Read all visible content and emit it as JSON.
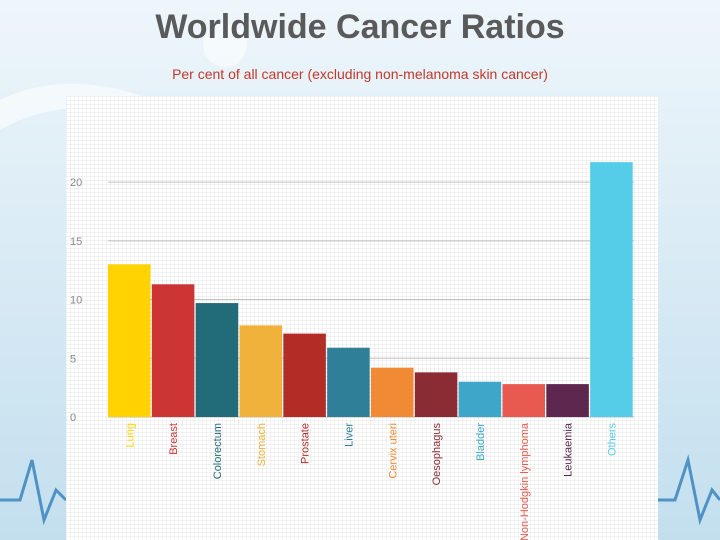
{
  "slide": {
    "title": "Worldwide Cancer Ratios",
    "subtitle": "Per cent of all cancer (excluding non-melanoma skin cancer)"
  },
  "chart_data": {
    "type": "bar",
    "categories": [
      "Lung",
      "Breast",
      "Colorectum",
      "Stomach",
      "Prostate",
      "Liver",
      "Cervix uteri",
      "Oesophagus",
      "Bladder",
      "Non-Hodgkin lymphoma",
      "Leukaemia",
      "Others"
    ],
    "values": [
      13.0,
      11.3,
      9.7,
      7.8,
      7.1,
      5.9,
      4.2,
      3.8,
      3.0,
      2.8,
      2.8,
      21.7
    ],
    "colors": [
      "#ffd200",
      "#cd3535",
      "#226b78",
      "#f0b23a",
      "#b22d25",
      "#2f7f98",
      "#f08a35",
      "#8b2c35",
      "#3ea6c8",
      "#e85a4f",
      "#5e2750",
      "#56cde8"
    ],
    "yticks": [
      0,
      5,
      10,
      15,
      20
    ],
    "ylim": [
      0,
      23.5
    ],
    "grid": true,
    "title": "",
    "xlabel": "",
    "ylabel": ""
  }
}
